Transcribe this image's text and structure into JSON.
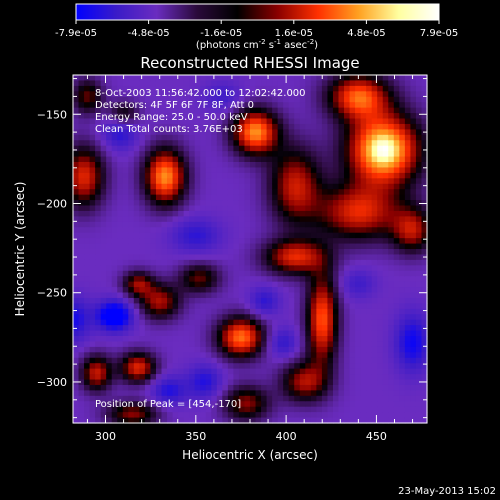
{
  "chart_data": {
    "type": "heatmap",
    "title": "Reconstructed RHESSI Image",
    "xlabel": "Heliocentric X (arcsec)",
    "ylabel": "Heliocentric Y (arcsec)",
    "xlim": [
      282,
      478
    ],
    "ylim": [
      -323,
      -128
    ],
    "xticks": [
      300,
      350,
      400,
      450
    ],
    "yticks": [
      -150,
      -200,
      -250,
      -300
    ],
    "colorbar": {
      "range": [
        -7.9e-05,
        7.9e-05
      ],
      "tick_labels": [
        "-7.9e-05",
        "-4.8e-05",
        "-1.6e-05",
        "1.6e-05",
        "4.8e-05",
        "7.9e-05"
      ],
      "colors": [
        "#0000ff",
        "#3a1bc8",
        "#6a2cc0",
        "#2a0a3a",
        "#000000",
        "#8a0000",
        "#ff3000",
        "#ffa020",
        "#ffffa0",
        "#ffffff"
      ],
      "unit_parts": [
        "(photons cm",
        "-2",
        " s",
        "-1",
        " asec",
        "-2",
        ")"
      ]
    },
    "annotations": {
      "time_range": "8-Oct-2003 11:56:42.000 to 12:02:42.000",
      "detectors": "Detectors: 4F 5F 6F 7F 8F, Att 0",
      "energy": "Energy Range: 25.0 - 50.0 keV",
      "clean": "Clean     Total counts: 3.76E+03",
      "peak": "Position of Peak = [454,-170]"
    },
    "peak_position": [
      454,
      -170
    ],
    "sources": [
      {
        "x": 454,
        "y": -170,
        "sx": 14,
        "sy": 14,
        "a": 1.0
      },
      {
        "x": 440,
        "y": -140,
        "sx": 12,
        "sy": 9,
        "a": 0.7
      },
      {
        "x": 383,
        "y": -160,
        "sx": 9,
        "sy": 9,
        "a": 0.8
      },
      {
        "x": 333,
        "y": -185,
        "sx": 8,
        "sy": 11,
        "a": 0.8
      },
      {
        "x": 288,
        "y": -185,
        "sx": 8,
        "sy": 12,
        "a": 0.6
      },
      {
        "x": 405,
        "y": -190,
        "sx": 10,
        "sy": 15,
        "a": 0.55
      },
      {
        "x": 405,
        "y": -230,
        "sx": 12,
        "sy": 7,
        "a": 0.6
      },
      {
        "x": 440,
        "y": -205,
        "sx": 16,
        "sy": 11,
        "a": 0.6
      },
      {
        "x": 470,
        "y": -215,
        "sx": 8,
        "sy": 9,
        "a": 0.5
      },
      {
        "x": 420,
        "y": -265,
        "sx": 6,
        "sy": 18,
        "a": 0.7
      },
      {
        "x": 330,
        "y": -255,
        "sx": 8,
        "sy": 7,
        "a": 0.5
      },
      {
        "x": 318,
        "y": -245,
        "sx": 6,
        "sy": 5,
        "a": 0.45
      },
      {
        "x": 352,
        "y": -242,
        "sx": 8,
        "sy": 6,
        "a": 0.4
      },
      {
        "x": 375,
        "y": -275,
        "sx": 9,
        "sy": 8,
        "a": 0.75
      },
      {
        "x": 318,
        "y": -292,
        "sx": 7,
        "sy": 6,
        "a": 0.6
      },
      {
        "x": 295,
        "y": -295,
        "sx": 6,
        "sy": 7,
        "a": 0.55
      },
      {
        "x": 315,
        "y": -318,
        "sx": 10,
        "sy": 5,
        "a": 0.45
      },
      {
        "x": 378,
        "y": -312,
        "sx": 9,
        "sy": 7,
        "a": 0.45
      },
      {
        "x": 410,
        "y": -300,
        "sx": 9,
        "sy": 8,
        "a": 0.5
      },
      {
        "x": 310,
        "y": -150,
        "sx": 6,
        "sy": 5,
        "a": 0.35
      },
      {
        "x": 290,
        "y": -140,
        "sx": 6,
        "sy": 7,
        "a": 0.4
      },
      {
        "x": 305,
        "y": -263,
        "sx": 7,
        "sy": 6,
        "a": -0.85
      },
      {
        "x": 308,
        "y": -160,
        "sx": 7,
        "sy": 7,
        "a": -0.45
      },
      {
        "x": 282,
        "y": -265,
        "sx": 7,
        "sy": 9,
        "a": -0.5
      },
      {
        "x": 350,
        "y": -218,
        "sx": 10,
        "sy": 7,
        "a": -0.4
      },
      {
        "x": 388,
        "y": -255,
        "sx": 6,
        "sy": 6,
        "a": -0.4
      },
      {
        "x": 470,
        "y": -278,
        "sx": 7,
        "sy": 12,
        "a": -0.55
      },
      {
        "x": 355,
        "y": -300,
        "sx": 7,
        "sy": 7,
        "a": -0.45
      },
      {
        "x": 398,
        "y": -278,
        "sx": 6,
        "sy": 6,
        "a": -0.4
      },
      {
        "x": 335,
        "y": -305,
        "sx": 7,
        "sy": 6,
        "a": -0.45
      },
      {
        "x": 440,
        "y": -245,
        "sx": 7,
        "sy": 6,
        "a": -0.3
      },
      {
        "x": 365,
        "y": -140,
        "sx": 8,
        "sy": 6,
        "a": -0.3
      }
    ]
  },
  "footer": {
    "date": "23-May-2013 15:02"
  }
}
